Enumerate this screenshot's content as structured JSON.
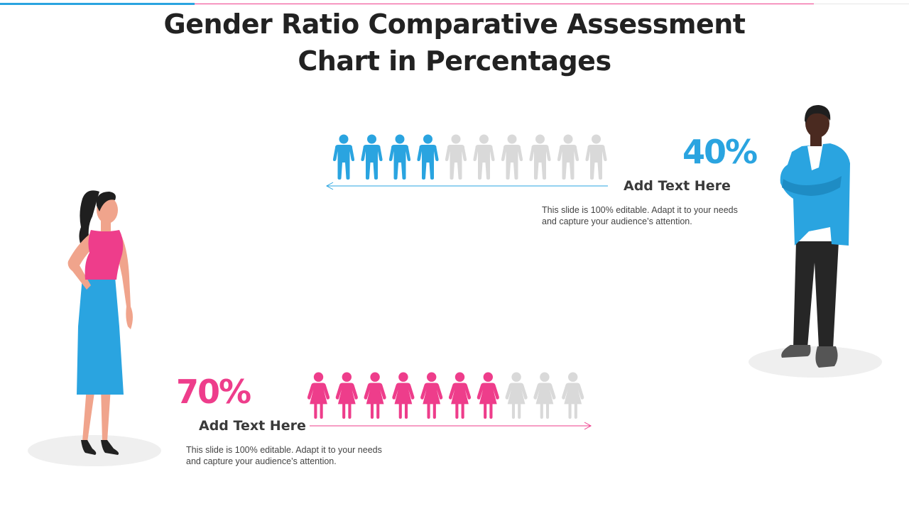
{
  "colors": {
    "male": "#2aa4e0",
    "female": "#ee3d8b",
    "inactive": "#d9d9d9",
    "title": "#222222",
    "accent_bar_blue": "#2aa4e0",
    "accent_bar_pink": "#ee3d8b"
  },
  "title": {
    "line1": "Gender Ratio Comparative Assessment",
    "line2": "Chart in Percentages"
  },
  "chart_data": {
    "type": "pictograph",
    "title": "Gender Ratio Comparative Assessment Chart in Percentages",
    "icons_per_row": 10,
    "series": [
      {
        "name": "male",
        "icon": "male-person-icon",
        "value_percent": 40,
        "filled_icons": 4,
        "label": "40%",
        "heading": "Add Text Here",
        "description": "This slide is 100% editable. Adapt it to your needs and capture your audience’s attention.",
        "arrow_direction": "left"
      },
      {
        "name": "female",
        "icon": "female-person-icon",
        "value_percent": 70,
        "filled_icons": 7,
        "label": "70%",
        "heading": "Add Text Here",
        "description": "This slide is 100% editable. Adapt it to your needs and capture your audience’s attention.",
        "arrow_direction": "right"
      }
    ]
  },
  "illustrations": {
    "woman": "standing-woman-illustration",
    "man": "standing-man-illustration"
  }
}
